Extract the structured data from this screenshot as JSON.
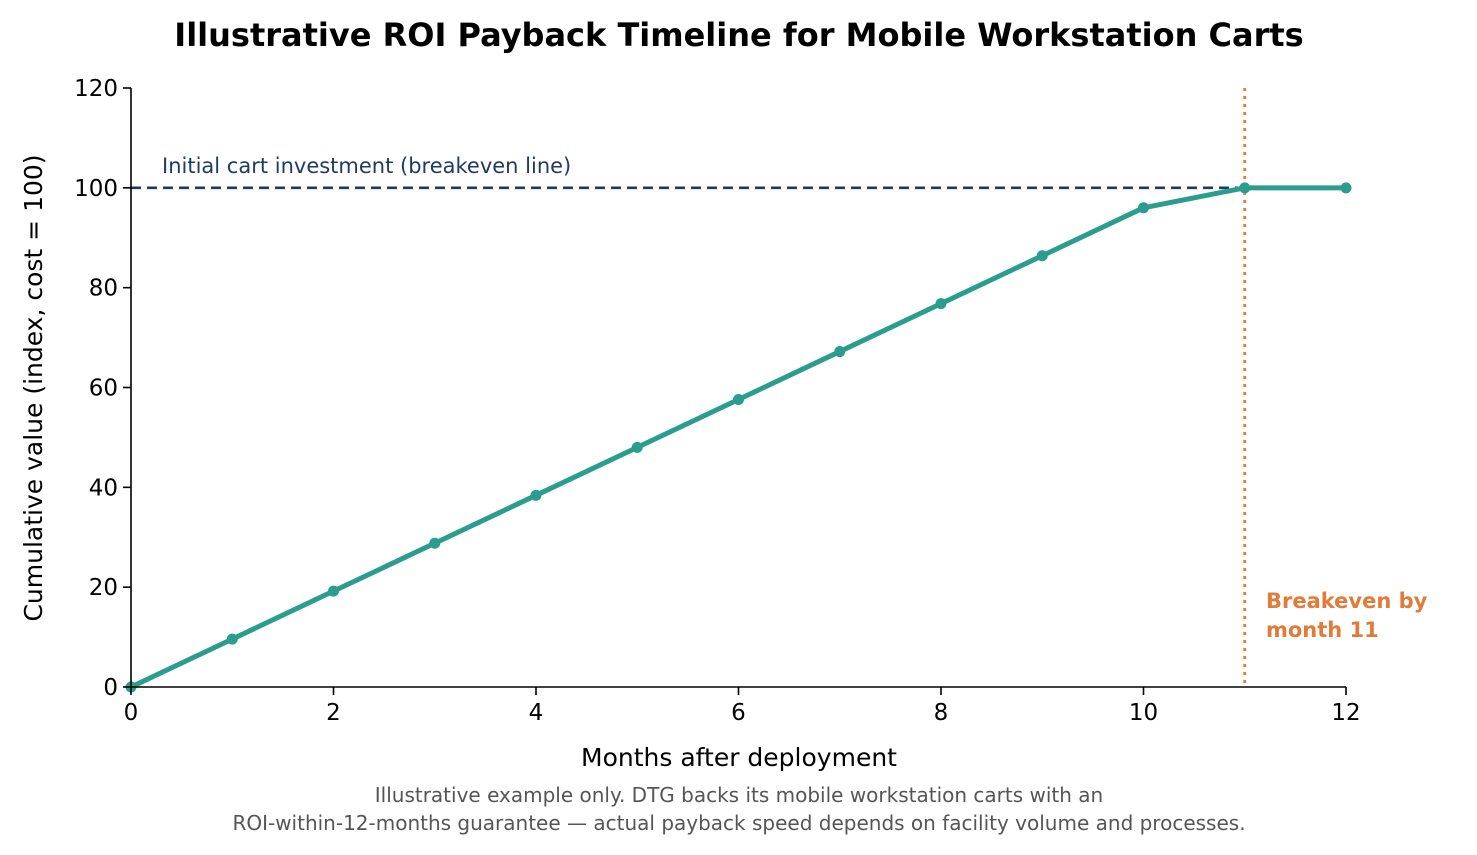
{
  "chart_data": {
    "type": "line",
    "title": "Illustrative ROI Payback Timeline for Mobile Workstation Carts",
    "xlabel": "Months after deployment",
    "ylabel": "Cumulative value (index, cost = 100)",
    "xlim": [
      0,
      12
    ],
    "ylim": [
      0,
      120
    ],
    "xticks": [
      0,
      2,
      4,
      6,
      8,
      10,
      12
    ],
    "yticks": [
      0,
      20,
      40,
      60,
      80,
      100,
      120
    ],
    "grid": false,
    "series": [
      {
        "color": "#2a9d8f",
        "x": [
          0,
          1,
          2,
          3,
          4,
          5,
          6,
          7,
          8,
          9,
          10,
          11,
          12
        ],
        "y": [
          0,
          9.6,
          19.2,
          28.8,
          38.4,
          48.0,
          57.6,
          67.2,
          76.8,
          86.4,
          96.0,
          100,
          100
        ]
      }
    ],
    "reference_line": {
      "y": 100,
      "label": "Initial cart investment (breakeven line)",
      "color": "#1f3a5f",
      "style": "dashed"
    },
    "breakeven_marker": {
      "x": 11,
      "color": "#e07b39",
      "style": "dotted",
      "annotation": [
        "Breakeven by",
        "month 11"
      ]
    },
    "caption": [
      "Illustrative example only. DTG backs its mobile workstation carts with an",
      "ROI-within-12-months guarantee — actual payback speed depends on facility volume and processes."
    ]
  }
}
